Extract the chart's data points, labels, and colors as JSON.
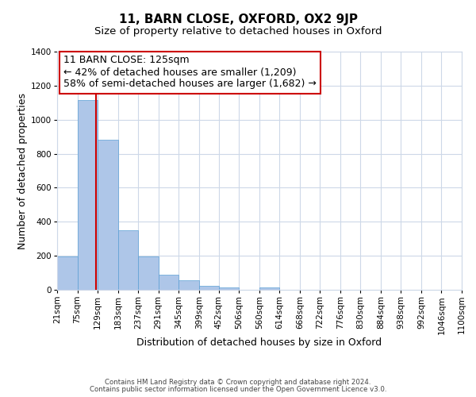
{
  "title": "11, BARN CLOSE, OXFORD, OX2 9JP",
  "subtitle": "Size of property relative to detached houses in Oxford",
  "xlabel": "Distribution of detached houses by size in Oxford",
  "ylabel": "Number of detached properties",
  "bin_edges": [
    21,
    75,
    129,
    183,
    237,
    291,
    345,
    399,
    452,
    506,
    560,
    614,
    668,
    722,
    776,
    830,
    884,
    938,
    992,
    1046,
    1100
  ],
  "counts": [
    195,
    1115,
    880,
    350,
    195,
    90,
    55,
    22,
    15,
    0,
    12,
    0,
    0,
    0,
    0,
    0,
    0,
    0,
    0,
    0
  ],
  "bar_color": "#aec6e8",
  "bar_edge_color": "#5a9fd4",
  "vline_x": 125,
  "vline_color": "#cc0000",
  "annotation_line1": "11 BARN CLOSE: 125sqm",
  "annotation_line2": "← 42% of detached houses are smaller (1,209)",
  "annotation_line3": "58% of semi-detached houses are larger (1,682) →",
  "ylim": [
    0,
    1400
  ],
  "yticks": [
    0,
    200,
    400,
    600,
    800,
    1000,
    1200,
    1400
  ],
  "tick_labels": [
    "21sqm",
    "75sqm",
    "129sqm",
    "183sqm",
    "237sqm",
    "291sqm",
    "345sqm",
    "399sqm",
    "452sqm",
    "506sqm",
    "560sqm",
    "614sqm",
    "668sqm",
    "722sqm",
    "776sqm",
    "830sqm",
    "884sqm",
    "938sqm",
    "992sqm",
    "1046sqm",
    "1100sqm"
  ],
  "footer1": "Contains HM Land Registry data © Crown copyright and database right 2024.",
  "footer2": "Contains public sector information licensed under the Open Government Licence v3.0.",
  "bg_color": "#ffffff",
  "grid_color": "#cdd8e8",
  "title_fontsize": 11,
  "subtitle_fontsize": 9.5,
  "axis_label_fontsize": 9,
  "tick_fontsize": 7.5,
  "annotation_fontsize": 9
}
